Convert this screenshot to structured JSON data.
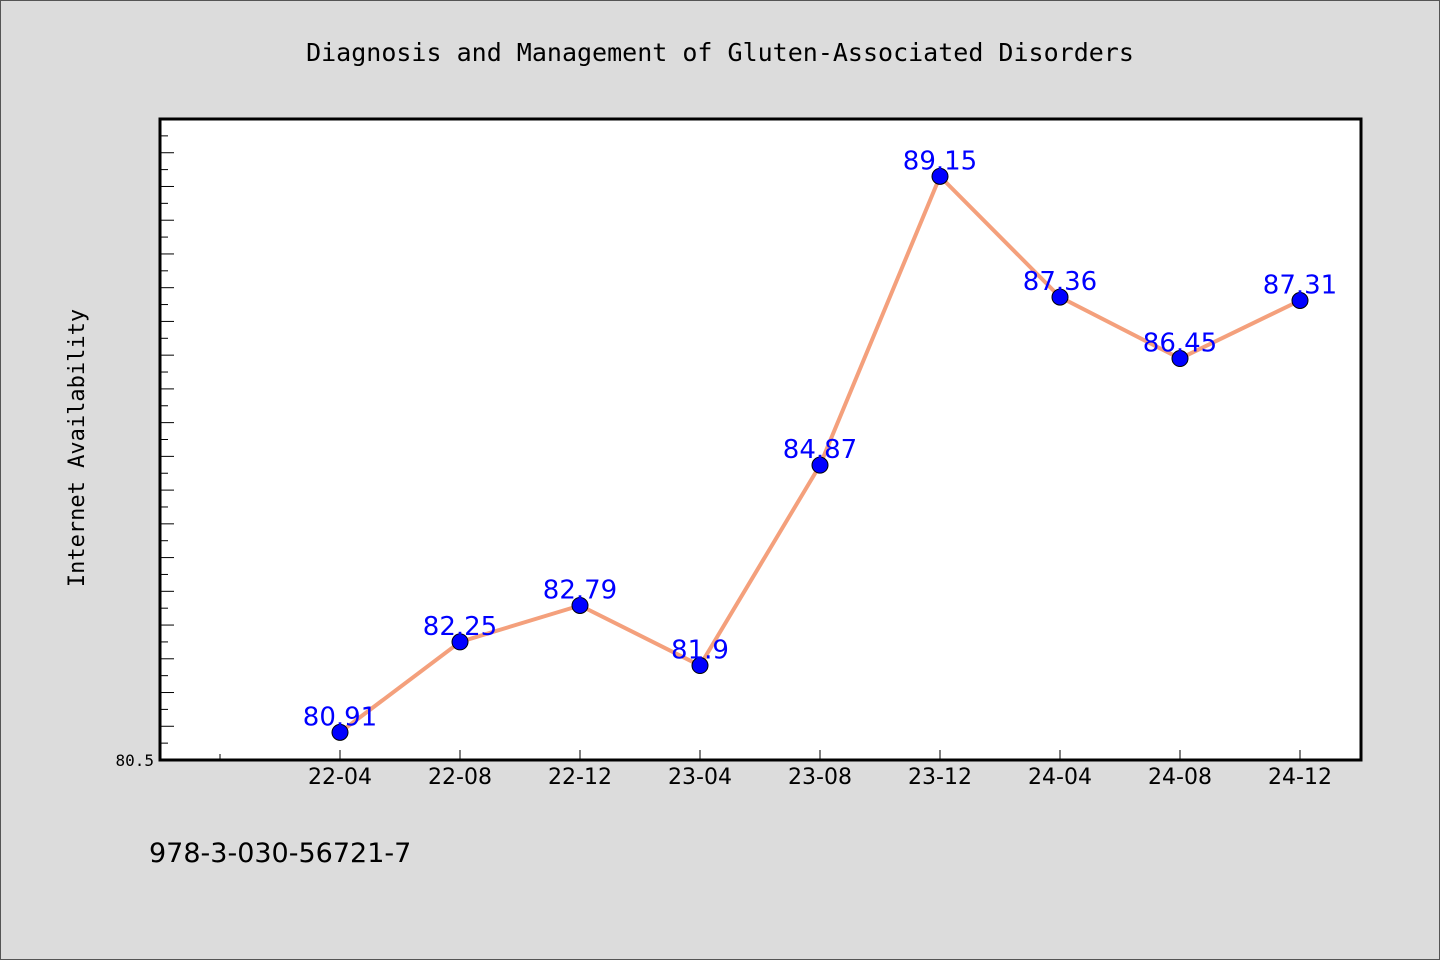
{
  "chart_data": {
    "type": "line",
    "title": "Diagnosis and Management of Gluten-Associated Disorders",
    "xlabel": "",
    "ylabel": "Internet Availability",
    "categories": [
      "22-04",
      "22-08",
      "22-12",
      "23-04",
      "23-08",
      "23-12",
      "24-04",
      "24-08",
      "24-12"
    ],
    "series": [
      {
        "values": [
          80.91,
          82.25,
          82.79,
          81.9,
          84.87,
          89.15,
          87.36,
          86.45,
          87.31
        ]
      }
    ],
    "data_labels": [
      "80.91",
      "82.25",
      "82.79",
      "81.9",
      "84.87",
      "89.15",
      "87.36",
      "86.45",
      "87.31"
    ],
    "ylim": [
      80.5,
      90.0
    ],
    "ytick_labels": [
      "80.5"
    ],
    "grid": false,
    "legend": "none",
    "line_color": "#f4a07c",
    "marker_color": "#0000ff",
    "label_color": "#0000ff"
  },
  "footer": {
    "isbn": "978-3-030-56721-7"
  }
}
